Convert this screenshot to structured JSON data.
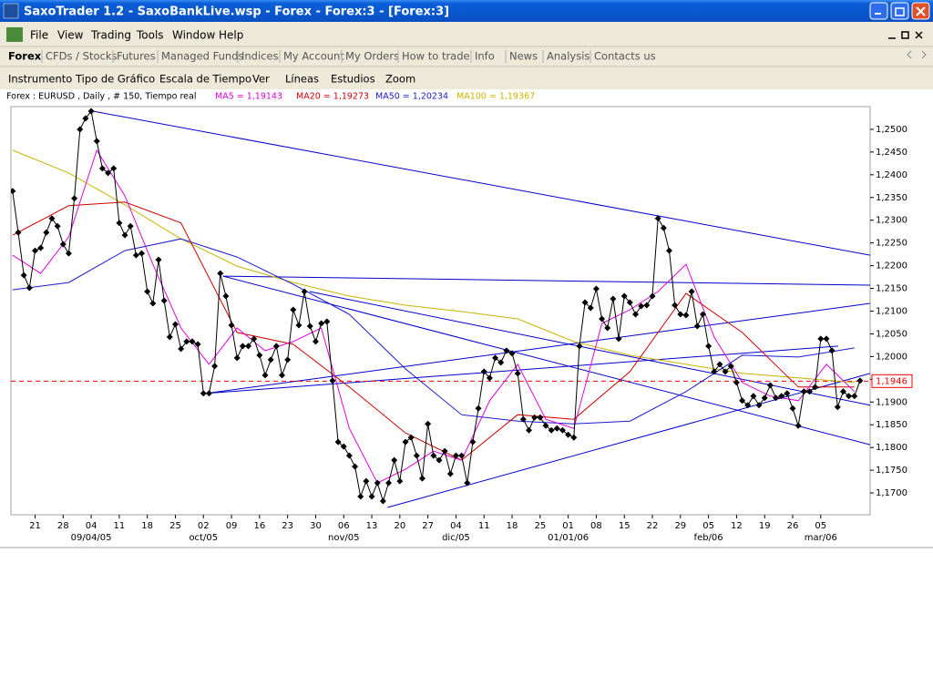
{
  "window": {
    "title": "SaxoTrader 1.2 - SaxoBankLive.wsp - Forex - Forex:3 - [Forex:3]",
    "menu": [
      "File",
      "View",
      "Trading",
      "Tools",
      "Window",
      "Help"
    ],
    "tabs": [
      "Forex",
      "CFDs / Stocks",
      "Futures",
      "Managed Funds",
      "Indices",
      "My Account",
      "My Orders",
      "How to trade",
      "Info",
      "News",
      "Analysis",
      "Contacts us"
    ],
    "chart_menu": [
      "Instrumento",
      "Tipo de Gráfico",
      "Escala de Tiempo",
      "Ver",
      "Líneas",
      "Estudios",
      "Zoom"
    ]
  },
  "chart_data": {
    "type": "line",
    "xlim": [
      -0.3,
      152.8
    ],
    "ylim": [
      1.1652,
      1.255
    ],
    "yticks": [
      {
        "value": 1.17,
        "label": "1,1700"
      },
      {
        "value": 1.175,
        "label": "1,1750"
      },
      {
        "value": 1.18,
        "label": "1,1800"
      },
      {
        "value": 1.185,
        "label": "1,1850"
      },
      {
        "value": 1.19,
        "label": "1,1900"
      },
      {
        "value": 1.195,
        "label": "1,1950"
      },
      {
        "value": 1.2,
        "label": "1,2000"
      },
      {
        "value": 1.205,
        "label": "1,2050"
      },
      {
        "value": 1.21,
        "label": "1,2100"
      },
      {
        "value": 1.215,
        "label": "1,2150"
      },
      {
        "value": 1.22,
        "label": "1,2200"
      },
      {
        "value": 1.225,
        "label": "1,2250"
      },
      {
        "value": 1.23,
        "label": "1,2300"
      },
      {
        "value": 1.235,
        "label": "1,2350"
      },
      {
        "value": 1.24,
        "label": "1,2400"
      },
      {
        "value": 1.245,
        "label": "1,2450"
      },
      {
        "value": 1.25,
        "label": "1,2500"
      }
    ],
    "xticks": [
      {
        "value": 4,
        "label": "21"
      },
      {
        "value": 9,
        "label": "28"
      },
      {
        "value": 14,
        "label": "04"
      },
      {
        "value": 19,
        "label": "11"
      },
      {
        "value": 24,
        "label": "18"
      },
      {
        "value": 29,
        "label": "25"
      },
      {
        "value": 34,
        "label": "02"
      },
      {
        "value": 39,
        "label": "09"
      },
      {
        "value": 44,
        "label": "16"
      },
      {
        "value": 49,
        "label": "23"
      },
      {
        "value": 54,
        "label": "30"
      },
      {
        "value": 59,
        "label": "06"
      },
      {
        "value": 64,
        "label": "13"
      },
      {
        "value": 69,
        "label": "20"
      },
      {
        "value": 74,
        "label": "27"
      },
      {
        "value": 79,
        "label": "04"
      },
      {
        "value": 84,
        "label": "11"
      },
      {
        "value": 89,
        "label": "18"
      },
      {
        "value": 94,
        "label": "25"
      },
      {
        "value": 99,
        "label": "01"
      },
      {
        "value": 104,
        "label": "08"
      },
      {
        "value": 109,
        "label": "15"
      },
      {
        "value": 114,
        "label": "22"
      },
      {
        "value": 119,
        "label": "29"
      },
      {
        "value": 124,
        "label": "05"
      },
      {
        "value": 129,
        "label": "12"
      },
      {
        "value": 134,
        "label": "19"
      },
      {
        "value": 139,
        "label": "26"
      },
      {
        "value": 144,
        "label": "05"
      }
    ],
    "month_ticks": [
      {
        "value": 14,
        "label": "09/04/05"
      },
      {
        "value": 34,
        "label": "oct/05"
      },
      {
        "value": 59,
        "label": "nov/05"
      },
      {
        "value": 79,
        "label": "dic/05"
      },
      {
        "value": 99,
        "label": "01/01/06"
      },
      {
        "value": 124,
        "label": "feb/06"
      },
      {
        "value": 144,
        "label": "mar/06"
      }
    ],
    "series": [
      {
        "name": "Forex : EURUSD , Daily , # 150, Tiempo real",
        "color": "#000000",
        "markers": true,
        "x": [
          0,
          1,
          2,
          3,
          4,
          5,
          6,
          7,
          8,
          9,
          10,
          11,
          12,
          13,
          14,
          15,
          16,
          17,
          18,
          19,
          20,
          21,
          22,
          23,
          24,
          25,
          26,
          27,
          28,
          29,
          30,
          31,
          32,
          33,
          34,
          35,
          36,
          37,
          38,
          39,
          40,
          41,
          42,
          43,
          44,
          45,
          46,
          47,
          48,
          49,
          50,
          51,
          52,
          53,
          54,
          55,
          56,
          57,
          58,
          59,
          60,
          61,
          62,
          63,
          64,
          65,
          66,
          67,
          68,
          69,
          70,
          71,
          72,
          73,
          74,
          75,
          76,
          77,
          78,
          79,
          80,
          81,
          82,
          83,
          84,
          85,
          86,
          87,
          88,
          89,
          90,
          91,
          92,
          93,
          94,
          95,
          96,
          97,
          98,
          99,
          100,
          101,
          102,
          103,
          104,
          105,
          106,
          107,
          108,
          109,
          110,
          111,
          112,
          113,
          114,
          115,
          116,
          117,
          118,
          119,
          120,
          121,
          122,
          123,
          124,
          125,
          126,
          127,
          128,
          129,
          130,
          131,
          132,
          133,
          134,
          135,
          136,
          137,
          138,
          139,
          140,
          141,
          142,
          143,
          144,
          145,
          146,
          147,
          148,
          149,
          150,
          151
        ],
        "values": [
          1.2364,
          1.2273,
          1.2179,
          1.2151,
          1.2233,
          1.2239,
          1.2273,
          1.2304,
          1.2287,
          1.2247,
          1.2227,
          1.2348,
          1.25,
          1.2524,
          1.254,
          1.2474,
          1.2414,
          1.2404,
          1.2414,
          1.2294,
          1.2267,
          1.2287,
          1.2223,
          1.2227,
          1.2143,
          1.2117,
          1.2213,
          1.2123,
          1.2043,
          1.2071,
          1.2017,
          1.2033,
          1.2033,
          1.2027,
          1.1919,
          1.1919,
          1.1979,
          1.2183,
          1.2133,
          1.2069,
          1.1997,
          1.2023,
          1.2023,
          1.2039,
          1.2003,
          1.1959,
          1.1993,
          1.2023,
          1.1959,
          1.1993,
          1.2103,
          1.2069,
          1.2143,
          1.2067,
          1.2033,
          1.2073,
          1.2077,
          1.1947,
          1.1812,
          1.1802,
          1.1782,
          1.1758,
          1.1692,
          1.1726,
          1.1692,
          1.1722,
          1.1682,
          1.1722,
          1.1772,
          1.1726,
          1.1812,
          1.1822,
          1.1782,
          1.1732,
          1.1852,
          1.1782,
          1.1772,
          1.1792,
          1.1742,
          1.1782,
          1.1782,
          1.1722,
          1.1812,
          1.1886,
          1.1967,
          1.1953,
          1.1997,
          1.1987,
          1.2013,
          1.2007,
          1.1963,
          1.1862,
          1.1838,
          1.1866,
          1.1866,
          1.1848,
          1.1838,
          1.1842,
          1.1838,
          1.1828,
          1.1822,
          1.2023,
          1.2119,
          1.2107,
          1.2149,
          1.2083,
          1.2063,
          1.2127,
          1.2039,
          1.2133,
          1.2119,
          1.2093,
          1.2111,
          1.2113,
          1.2133,
          1.2304,
          1.2283,
          1.2233,
          1.2113,
          1.2093,
          1.2091,
          1.2143,
          1.2067,
          1.2093,
          1.2023,
          1.1967,
          1.1983,
          1.1967,
          1.1979,
          1.1943,
          1.1903,
          1.1893,
          1.1913,
          1.1893,
          1.1909,
          1.1937,
          1.1909,
          1.1913,
          1.1919,
          1.1886,
          1.1848,
          1.1923,
          1.1923,
          1.1933,
          1.2039,
          1.2039,
          1.2013,
          1.1889,
          1.1923,
          1.1913,
          1.1913,
          1.1947
        ]
      },
      {
        "name": "MA5 = 1,19143",
        "color": "#e000e0",
        "markers": false,
        "x": [
          0,
          5,
          10,
          15,
          20,
          25,
          30,
          35,
          40,
          45,
          50,
          55,
          60,
          65,
          70,
          75,
          80,
          85,
          90,
          95,
          100,
          105,
          110,
          115,
          120,
          125,
          130,
          135,
          140,
          145,
          150
        ],
        "values": [
          1.2223,
          1.2183,
          1.2263,
          1.2454,
          1.2354,
          1.2203,
          1.2063,
          1.1983,
          1.2063,
          1.2013,
          1.2033,
          1.2063,
          1.1842,
          1.1722,
          1.1752,
          1.1792,
          1.1772,
          1.1903,
          1.1983,
          1.1862,
          1.1842,
          1.2073,
          1.2103,
          1.2143,
          1.2203,
          1.2043,
          1.1943,
          1.1913,
          1.1903,
          1.1983,
          1.1923
        ]
      },
      {
        "name": "MA20 = 1,19273",
        "color": "#d00000",
        "markers": false,
        "x": [
          0,
          10,
          20,
          30,
          40,
          50,
          60,
          70,
          80,
          90,
          100,
          110,
          120,
          130,
          140,
          150
        ],
        "values": [
          1.2267,
          1.2332,
          1.234,
          1.2294,
          1.2053,
          1.2027,
          1.1933,
          1.1832,
          1.1772,
          1.1872,
          1.1862,
          1.1967,
          1.2139,
          1.2053,
          1.1933,
          1.1933
        ]
      },
      {
        "name": "MA50 = 1,20234",
        "color": "#1a1ad0",
        "markers": false,
        "x": [
          0,
          10,
          20,
          30,
          40,
          50,
          60,
          70,
          80,
          90,
          100,
          110,
          120,
          130,
          140,
          150
        ],
        "values": [
          1.2147,
          1.2163,
          1.2233,
          1.2259,
          1.2219,
          1.2159,
          1.2093,
          1.1973,
          1.1872,
          1.1858,
          1.1852,
          1.1858,
          1.1923,
          1.2003,
          1.1999,
          1.2019
        ]
      },
      {
        "name": "MA100 = 1,19367",
        "color": "#c8b400",
        "markers": false,
        "x": [
          0,
          10,
          20,
          30,
          40,
          50,
          60,
          70,
          80,
          90,
          100,
          110,
          120,
          130,
          140,
          150
        ],
        "values": [
          1.2454,
          1.2404,
          1.2334,
          1.2259,
          1.2199,
          1.2163,
          1.2133,
          1.2113,
          1.2099,
          1.2083,
          1.2033,
          1.2003,
          1.1983,
          1.1963,
          1.1953,
          1.1943
        ]
      }
    ],
    "trendline_color": "#0000cc",
    "trendlines": [
      {
        "x": [
          14.3,
          152.8
        ],
        "values": [
          1.254,
          1.2223
        ]
      },
      {
        "x": [
          37.5,
          152.8
        ],
        "values": [
          1.2177,
          1.2157
        ]
      },
      {
        "x": [
          34.5,
          152.8
        ],
        "values": [
          1.1919,
          1.2117
        ]
      },
      {
        "x": [
          34.5,
          147.1
        ],
        "values": [
          1.1919,
          1.2023
        ]
      },
      {
        "x": [
          37.5,
          152.8
        ],
        "values": [
          1.2177,
          1.1806
        ]
      },
      {
        "x": [
          52.9,
          152.8
        ],
        "values": [
          1.2143,
          1.1893
        ]
      },
      {
        "x": [
          66.8,
          152.8
        ],
        "values": [
          1.1668,
          1.1963
        ]
      }
    ],
    "last_price": {
      "value": 1.1946,
      "label": "1,1946",
      "color": "#ff0000"
    }
  }
}
